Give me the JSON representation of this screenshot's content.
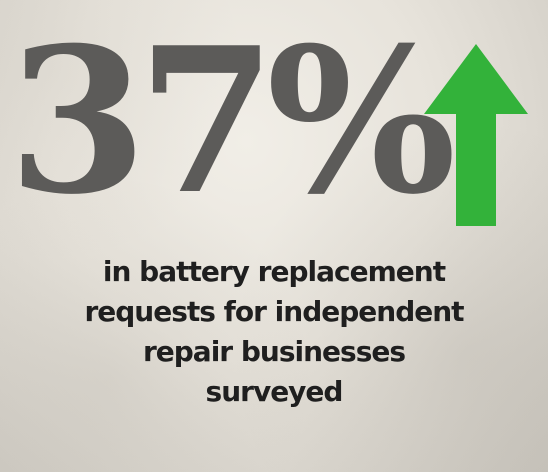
{
  "stat": {
    "value": "37%",
    "arrow_icon": "arrow-up-icon",
    "arrow_color": "#33b23a"
  },
  "caption": {
    "lines": [
      "in battery replacement",
      "requests for independent",
      "repair businesses",
      "surveyed"
    ]
  },
  "colors": {
    "stat_text": "#5c5b59",
    "caption_text": "#1f1f1f",
    "background": "#e7e3db"
  }
}
